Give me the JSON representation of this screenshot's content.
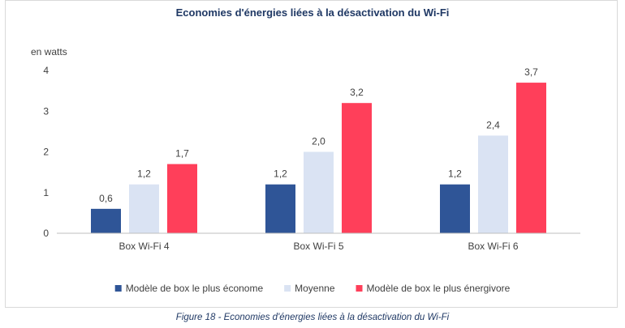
{
  "chart_data": {
    "type": "bar",
    "title": "Economies d'énergies liées à la désactivation du Wi-Fi",
    "ylabel": "en watts",
    "xlabel": "",
    "categories": [
      "Box Wi-Fi 4",
      "Box Wi-Fi 5",
      "Box Wi-Fi 6"
    ],
    "series": [
      {
        "name": "Modèle de box le plus économe",
        "values": [
          0.6,
          1.2,
          1.2
        ],
        "labels": [
          "0,6",
          "1,2",
          "1,2"
        ],
        "color": "#2f5597"
      },
      {
        "name": "Moyenne",
        "values": [
          1.2,
          2.0,
          2.4
        ],
        "labels": [
          "1,2",
          "2,0",
          "2,4"
        ],
        "color": "#dae3f3"
      },
      {
        "name": "Modèle de box le plus énergivore",
        "values": [
          1.7,
          3.2,
          3.7
        ],
        "labels": [
          "1,7",
          "3,2",
          "3,7"
        ],
        "color": "#ff3f5a"
      }
    ],
    "yticks": [
      0,
      1,
      2,
      3,
      4
    ],
    "ytick_labels": [
      "0",
      "1",
      "2",
      "3",
      "4"
    ],
    "ylim": [
      0,
      4
    ],
    "grid": false,
    "legend_position": "bottom"
  },
  "caption": "Figure 18 - Economies d'énergies liées à la désactivation du Wi-Fi"
}
